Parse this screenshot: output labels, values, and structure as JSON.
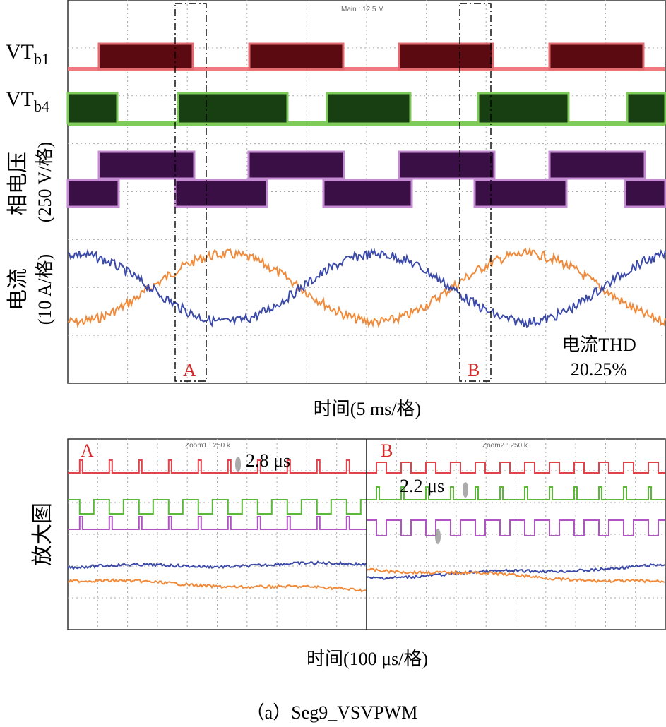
{
  "chart_data": [
    {
      "type": "line",
      "panel": "top",
      "scope_readout": "Main : 12.5 M",
      "channels": [
        {
          "name": "VTb1",
          "label_main": "VT",
          "label_sub": "b1",
          "color": "#e0434b",
          "kind": "pulse",
          "period_ms": 10,
          "duty": 0.6,
          "low": 0,
          "high": 1
        },
        {
          "name": "VTb4",
          "label_main": "VT",
          "label_sub": "b4",
          "color": "#2e6a1c",
          "kind": "pulse",
          "period_ms": 10,
          "duty": 0.6,
          "low": 0,
          "high": 1
        },
        {
          "name": "相电压",
          "color": "#6b2a78",
          "kind": "three-level",
          "period_ms": 10
        },
        {
          "name": "电流-1",
          "color": "#3b49a8",
          "kind": "sine",
          "amplitude_div": 1.0,
          "period_ms": 20
        },
        {
          "name": "电流-2",
          "color": "#f08a3a",
          "kind": "sine",
          "amplitude_div": 1.0,
          "period_ms": 20
        }
      ],
      "ylabel_voltage": "相电压",
      "ylabel_voltage_unit": "(250 V/格)",
      "ylabel_current": "电流",
      "ylabel_current_unit": "(10 A/格)",
      "xlabel": "时间(5 ms/格)",
      "xrange_ms": [
        0,
        50
      ],
      "marker_A": "A",
      "marker_B": "B",
      "thd_label": "电流THD",
      "thd_value": "20.25%"
    },
    {
      "type": "line",
      "panel": "zoom",
      "ylabel": "放大图",
      "xlabel": "时间(100 μs/格)",
      "zoom1_readout": "Zoom1 : 250 k",
      "zoom2_readout": "Zoom2 : 250 k",
      "zoom1_label": "A",
      "zoom2_label": "B",
      "annot_left": "2.8 μs",
      "annot_right": "2.2 μs"
    }
  ],
  "caption": "（a）Seg9_VSVPWM"
}
